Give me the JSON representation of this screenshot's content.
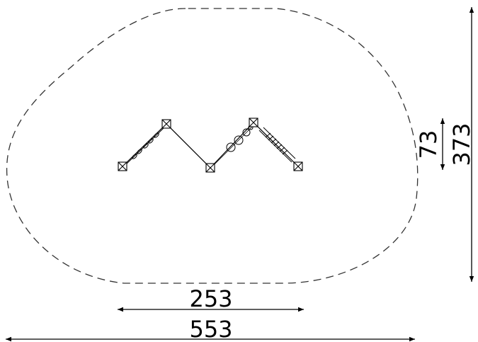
{
  "drawing": {
    "stroke_color": "#000000",
    "background_color": "#ffffff"
  },
  "dimensions": {
    "total_width": "553",
    "equipment_width": "253",
    "total_height": "373",
    "equipment_height": "73"
  }
}
